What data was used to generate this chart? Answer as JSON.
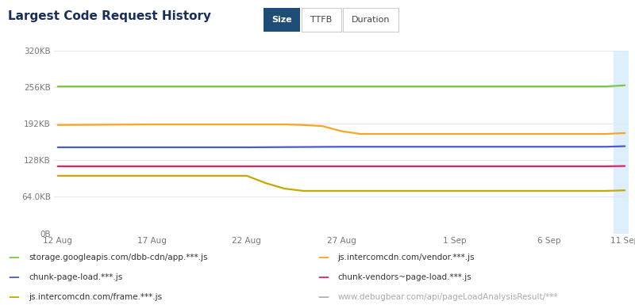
{
  "title": "Largest Code Request History",
  "title_fontsize": 11,
  "title_color": "#1a2e5a",
  "background_color": "#ffffff",
  "plot_bg_color": "#ffffff",
  "grid_color": "#e8e8e8",
  "tab_labels": [
    "Size",
    "TTFB",
    "Duration"
  ],
  "tab_active": "Size",
  "tab_active_color": "#1e4d78",
  "tab_inactive_color": "#ffffff",
  "tab_border_color": "#cccccc",
  "ytick_labels": [
    "0B",
    "64.0KB",
    "128KB",
    "192KB",
    "256KB",
    "320KB"
  ],
  "ytick_values": [
    0,
    65536,
    131072,
    196608,
    262144,
    327680
  ],
  "xtick_labels": [
    "12 Aug",
    "17 Aug",
    "22 Aug",
    "27 Aug",
    "1 Sep",
    "6 Sep",
    "11 Sep"
  ],
  "xtick_values": [
    0,
    5,
    10,
    15,
    21,
    26,
    30
  ],
  "series": [
    {
      "name": "storage.googleapis.com/dbb-cdn/app.***.js",
      "color": "#7bc745",
      "x": [
        0,
        5,
        10,
        14,
        15,
        21,
        26,
        29,
        30
      ],
      "y": [
        263000,
        263000,
        263000,
        263000,
        263000,
        263000,
        263000,
        263000,
        265000
      ]
    },
    {
      "name": "js.intercomcdn.com/vendor.***.js",
      "color": "#f5a623",
      "x": [
        0,
        5,
        10,
        12,
        13,
        14,
        15,
        16,
        21,
        26,
        29,
        30
      ],
      "y": [
        194000,
        195000,
        195000,
        195000,
        194000,
        192000,
        183000,
        178000,
        178000,
        178000,
        178000,
        179500
      ]
    },
    {
      "name": "chunk-page-load.***.js",
      "color": "#4a5bc7",
      "x": [
        0,
        5,
        10,
        15,
        21,
        26,
        29,
        30
      ],
      "y": [
        154000,
        154000,
        154000,
        155000,
        155000,
        155000,
        155000,
        156000
      ]
    },
    {
      "name": "chunk-vendors~page-load.***.js",
      "color": "#e0225e",
      "x": [
        0,
        5,
        10,
        15,
        21,
        26,
        29,
        30
      ],
      "y": [
        120000,
        120000,
        120000,
        120000,
        120000,
        120000,
        120000,
        120500
      ]
    },
    {
      "name": "js.intercomcdn.com/frame.***.js",
      "color": "#c8a800",
      "x": [
        0,
        5,
        10,
        11,
        12,
        13,
        15,
        21,
        26,
        29,
        30
      ],
      "y": [
        103000,
        103000,
        103000,
        90000,
        80000,
        76000,
        76000,
        76000,
        76000,
        76000,
        77000
      ]
    },
    {
      "name": "www.debugbear.com/api/pageLoadAnalysisResult/***",
      "color": "#b0b0b0",
      "x": [],
      "y": []
    }
  ],
  "highlight_x_start": 29.4,
  "highlight_color": "#ddeeff",
  "xmin": 0,
  "xmax": 30,
  "ymin": 0,
  "ymax": 327680
}
